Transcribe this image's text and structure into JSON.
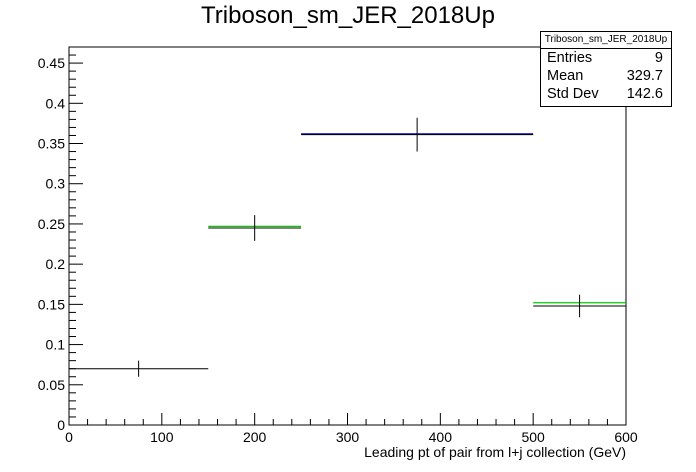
{
  "chart_data": {
    "type": "histogram",
    "title": "Triboson_sm_JER_2018Up",
    "xlabel": "Leading pt of pair from l+j collection (GeV)",
    "ylabel": "",
    "xlim": [
      0,
      600
    ],
    "ylim": [
      0,
      0.47
    ],
    "x_ticks": [
      0,
      100,
      200,
      300,
      400,
      500,
      600
    ],
    "y_ticks": [
      0,
      0.05,
      0.1,
      0.15,
      0.2,
      0.25,
      0.3,
      0.35,
      0.4,
      0.45
    ],
    "x_tick_labels": [
      "0",
      "100",
      "200",
      "300",
      "400",
      "500",
      "600"
    ],
    "y_tick_labels": [
      "0",
      "0.05",
      "0.1",
      "0.15",
      "0.2",
      "0.25",
      "0.3",
      "0.35",
      "0.4",
      "0.45"
    ],
    "bins": [
      {
        "xlow": 0,
        "xhigh": 150,
        "center": 75,
        "value": 0.07,
        "error": 0.01
      },
      {
        "xlow": 150,
        "xhigh": 250,
        "center": 200,
        "value": 0.245,
        "error": 0.016
      },
      {
        "xlow": 250,
        "xhigh": 500,
        "center": 375,
        "value": 0.361,
        "error": 0.021
      },
      {
        "xlow": 500,
        "xhigh": 600,
        "center": 550,
        "value": 0.148,
        "error": 0.014
      }
    ],
    "overlays": [
      {
        "color": "#00cc00",
        "bins": [
          {
            "xlow": 150,
            "xhigh": 250,
            "value": 0.247
          },
          {
            "xlow": 500,
            "xhigh": 600,
            "value": 0.152
          }
        ]
      },
      {
        "color": "#0000cc",
        "bins": [
          {
            "xlow": 250,
            "xhigh": 500,
            "value": 0.362
          }
        ]
      }
    ],
    "grid": false,
    "legend": "none"
  },
  "stats_box": {
    "title": "Triboson_sm_JER_2018Up",
    "rows": [
      {
        "label": "Entries",
        "value": "9"
      },
      {
        "label": "Mean",
        "value": "329.7"
      },
      {
        "label": "Std Dev",
        "value": "142.6"
      }
    ]
  }
}
